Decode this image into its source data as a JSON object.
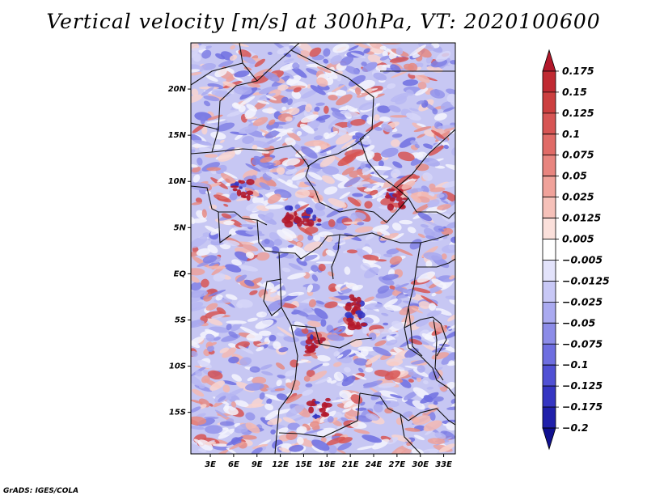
{
  "title": "Vertical velocity [m/s] at 300hPa, VT: 2020100600",
  "credit": "GrADS: IGES/COLA",
  "map": {
    "lat_labels": [
      "20N",
      "15N",
      "10N",
      "5N",
      "EQ",
      "5S",
      "10S",
      "15S"
    ],
    "lon_labels": [
      "3E",
      "6E",
      "9E",
      "12E",
      "15E",
      "18E",
      "21E",
      "24E",
      "27E",
      "30E",
      "33E"
    ],
    "lat_values": [
      20,
      15,
      10,
      5,
      0,
      -5,
      -10,
      -15
    ],
    "lon_values": [
      3,
      6,
      9,
      12,
      15,
      18,
      21,
      24,
      27,
      30,
      33
    ],
    "lon_range": [
      0.5,
      34.5
    ],
    "lat_range": [
      -19.5,
      25
    ]
  },
  "colorbar": {
    "labels": [
      "0.175",
      "0.15",
      "0.125",
      "0.1",
      "0.075",
      "0.05",
      "0.025",
      "0.0125",
      "0.005",
      "−0.005",
      "−0.0125",
      "−0.025",
      "−0.05",
      "−0.075",
      "−0.1",
      "−0.125",
      "−0.175",
      "−0.2"
    ],
    "colors": [
      "#b2182b",
      "#c02a32",
      "#cc3f3f",
      "#d75554",
      "#e06b67",
      "#e8857f",
      "#f0a29a",
      "#f6c1b9",
      "#fbe0db",
      "#ffffff",
      "#e3e3fb",
      "#c8c8f6",
      "#aaaaf0",
      "#8c8ce8",
      "#6e6ee0",
      "#5050d4",
      "#3535c2",
      "#2020aa",
      "#10108f"
    ]
  }
}
